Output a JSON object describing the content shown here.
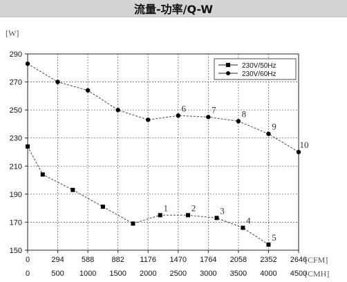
{
  "page": {
    "title": "流量-功率/Q-W"
  },
  "chart_data": {
    "type": "line",
    "title": "流量-功率/Q-W",
    "ylabel": "[W]",
    "ylim": [
      150,
      290
    ],
    "yticks": [
      150,
      170,
      190,
      210,
      230,
      250,
      270,
      290
    ],
    "xlim": [
      0,
      2646
    ],
    "x_cfm_ticks": [
      "0",
      "294",
      "588",
      "882",
      "1176",
      "1470",
      "1764",
      "2058",
      "2352",
      "2646"
    ],
    "x_cmh_ticks": [
      "0",
      "500",
      "1000",
      "1500",
      "2000",
      "2500",
      "3000",
      "3500",
      "4000",
      "4500"
    ],
    "x_cfm_unit": "[CFM]",
    "x_cmh_unit": "[CMH]",
    "grid": true,
    "legend_position": "top-right",
    "series": [
      {
        "name": "230V/50Hz",
        "marker": "square",
        "color": "#000000",
        "x": [
          0,
          147,
          441,
          735,
          1029,
          1294,
          1566,
          1846,
          2102,
          2352
        ],
        "y": [
          224,
          204,
          193,
          181,
          169,
          175,
          175,
          173,
          166,
          154
        ]
      },
      {
        "name": "230V/60Hz",
        "marker": "circle",
        "color": "#000000",
        "x": [
          0,
          294,
          588,
          882,
          1176,
          1470,
          1764,
          2058,
          2352,
          2646
        ],
        "y": [
          283,
          270,
          264,
          250,
          243,
          246,
          245,
          242,
          233,
          220
        ]
      }
    ],
    "point_labels": [
      {
        "series": 0,
        "index": 5,
        "text": "1"
      },
      {
        "series": 0,
        "index": 6,
        "text": "2"
      },
      {
        "series": 0,
        "index": 7,
        "text": "3"
      },
      {
        "series": 0,
        "index": 8,
        "text": "4"
      },
      {
        "series": 0,
        "index": 9,
        "text": "5"
      },
      {
        "series": 1,
        "index": 5,
        "text": "6"
      },
      {
        "series": 1,
        "index": 6,
        "text": "7"
      },
      {
        "series": 1,
        "index": 7,
        "text": "8"
      },
      {
        "series": 1,
        "index": 8,
        "text": "9"
      },
      {
        "series": 1,
        "index": 9,
        "text": "10"
      }
    ]
  }
}
